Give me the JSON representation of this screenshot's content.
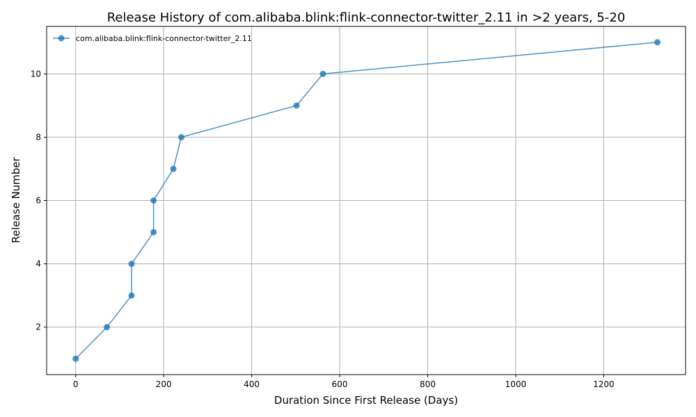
{
  "chart_data": {
    "type": "line",
    "title": "Release History of com.alibaba.blink:flink-connector-twitter_2.11 in >2 years, 5-20",
    "xlabel": "Duration Since First Release (Days)",
    "ylabel": "Release Number",
    "xlim": [
      -66,
      1386
    ],
    "ylim": [
      0.5,
      11.5
    ],
    "xticks": [
      0,
      200,
      400,
      600,
      800,
      1000,
      1200
    ],
    "yticks": [
      2,
      4,
      6,
      8,
      10
    ],
    "grid": true,
    "legend_position": "top-left",
    "series": [
      {
        "name": "com.alibaba.blink:flink-connector-twitter_2.11",
        "color": "#1f77b4",
        "marker": "circle",
        "x": [
          0,
          71,
          127,
          127,
          177,
          177,
          222,
          240,
          502,
          562,
          1322
        ],
        "y": [
          1,
          2,
          3,
          4,
          5,
          6,
          7,
          8,
          9,
          10,
          11
        ]
      }
    ]
  }
}
